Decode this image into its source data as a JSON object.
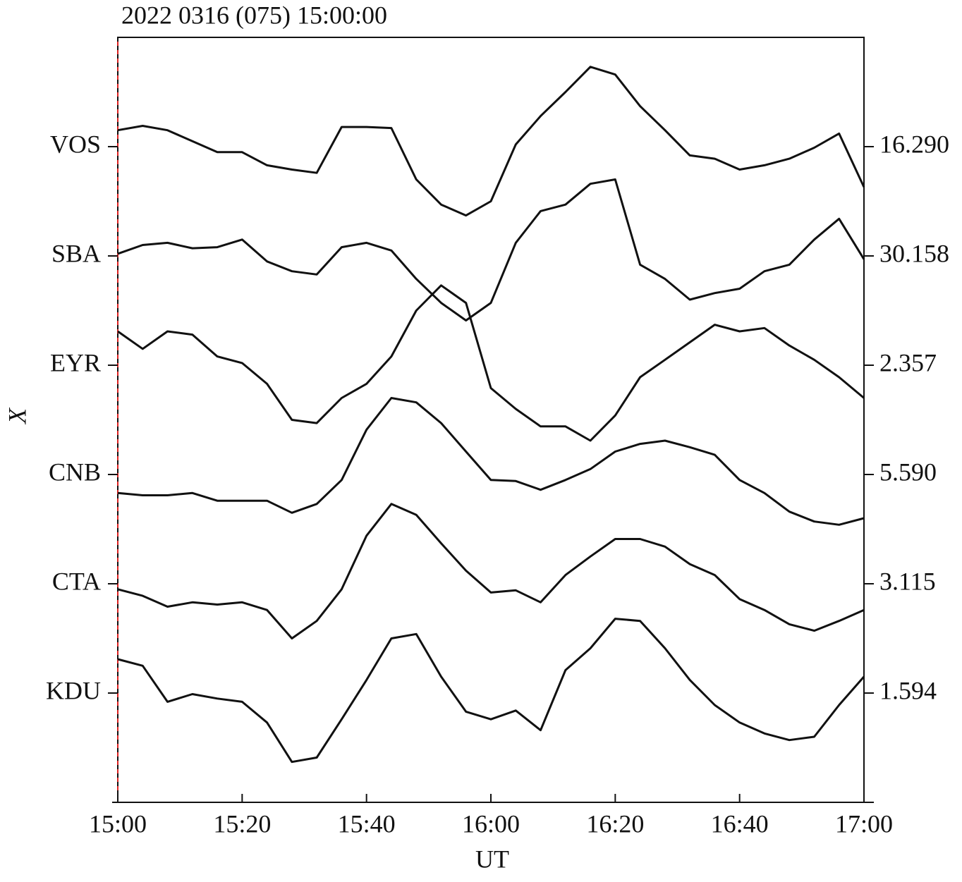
{
  "chart_data": {
    "type": "line",
    "title": "2022 0316 (075) 15:00:00",
    "xlabel": "UT",
    "ylabel": "X",
    "x": [
      0,
      4,
      8,
      12,
      16,
      20,
      24,
      28,
      32,
      36,
      40,
      44,
      48,
      52,
      56,
      60,
      64,
      68,
      72,
      76,
      80,
      84,
      88,
      92,
      96,
      100,
      104,
      108,
      112,
      116,
      120
    ],
    "xlim": [
      0,
      120
    ],
    "xticks": [
      {
        "value": 0,
        "label": "15:00"
      },
      {
        "value": 20,
        "label": "15:20"
      },
      {
        "value": 40,
        "label": "15:40"
      },
      {
        "value": 60,
        "label": "16:00"
      },
      {
        "value": 80,
        "label": "16:20"
      },
      {
        "value": 100,
        "label": "16:40"
      },
      {
        "value": 120,
        "label": "17:00"
      }
    ],
    "ylim": [
      0,
      7
    ],
    "yticks": [
      {
        "value": 6,
        "label": "VOS"
      },
      {
        "value": 5,
        "label": "SBA"
      },
      {
        "value": 4,
        "label": "EYR"
      },
      {
        "value": 3,
        "label": "CNB"
      },
      {
        "value": 2,
        "label": "CTA"
      },
      {
        "value": 1,
        "label": "KDU"
      }
    ],
    "y2lim": [
      0,
      7
    ],
    "y2ticks": [
      {
        "value": 6,
        "label": "16.290"
      },
      {
        "value": 5,
        "label": "30.158"
      },
      {
        "value": 4,
        "label": "2.357"
      },
      {
        "value": 3,
        "label": "5.590"
      },
      {
        "value": 2,
        "label": "3.115"
      },
      {
        "value": 1,
        "label": "1.594"
      }
    ],
    "series": [
      {
        "color": "#111111",
        "values": [
          6.15,
          6.19,
          6.15,
          6.05,
          5.95,
          5.95,
          5.83,
          5.79,
          5.76,
          6.18,
          6.18,
          6.17,
          5.7,
          5.47,
          5.37,
          5.5,
          6.02,
          6.28,
          6.5,
          6.73,
          6.66,
          6.37,
          6.15,
          5.92,
          5.89,
          5.79,
          5.83,
          5.89,
          5.99,
          6.12,
          5.63
        ]
      },
      {
        "color": "#111111",
        "values": [
          5.02,
          5.1,
          5.12,
          5.07,
          5.08,
          5.15,
          4.95,
          4.86,
          4.83,
          5.08,
          5.12,
          5.05,
          4.79,
          4.57,
          4.41,
          4.57,
          5.12,
          5.41,
          5.47,
          5.66,
          5.7,
          4.92,
          4.79,
          4.6,
          4.66,
          4.7,
          4.86,
          4.92,
          5.15,
          5.34,
          4.97
        ]
      },
      {
        "color": "#111111",
        "values": [
          4.31,
          4.15,
          4.31,
          4.28,
          4.08,
          4.02,
          3.83,
          3.5,
          3.47,
          3.7,
          3.83,
          4.08,
          4.5,
          4.73,
          4.57,
          3.79,
          3.6,
          3.44,
          3.44,
          3.31,
          3.54,
          3.89,
          4.05,
          4.21,
          4.37,
          4.31,
          4.34,
          4.18,
          4.05,
          3.89,
          3.7
        ]
      },
      {
        "color": "#111111",
        "values": [
          2.83,
          2.81,
          2.81,
          2.83,
          2.76,
          2.76,
          2.76,
          2.65,
          2.73,
          2.95,
          3.41,
          3.7,
          3.66,
          3.47,
          3.21,
          2.95,
          2.94,
          2.86,
          2.95,
          3.05,
          3.21,
          3.28,
          3.31,
          3.25,
          3.18,
          2.95,
          2.83,
          2.66,
          2.57,
          2.54,
          2.6
        ]
      },
      {
        "color": "#111111",
        "values": [
          1.95,
          1.89,
          1.79,
          1.83,
          1.81,
          1.83,
          1.76,
          1.5,
          1.66,
          1.95,
          2.44,
          2.73,
          2.63,
          2.37,
          2.12,
          1.92,
          1.94,
          1.83,
          2.08,
          2.25,
          2.41,
          2.41,
          2.34,
          2.18,
          2.08,
          1.86,
          1.76,
          1.63,
          1.57,
          1.66,
          1.76
        ]
      },
      {
        "color": "#111111",
        "values": [
          1.31,
          1.25,
          0.92,
          0.99,
          0.95,
          0.92,
          0.73,
          0.37,
          0.41,
          0.76,
          1.12,
          1.5,
          1.54,
          1.15,
          0.83,
          0.76,
          0.84,
          0.66,
          1.21,
          1.41,
          1.68,
          1.66,
          1.41,
          1.12,
          0.89,
          0.73,
          0.63,
          0.57,
          0.6,
          0.89,
          1.15
        ]
      }
    ]
  }
}
